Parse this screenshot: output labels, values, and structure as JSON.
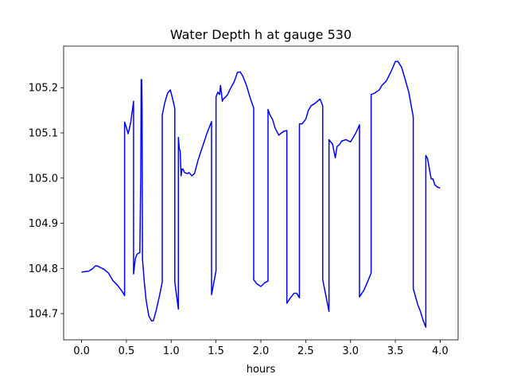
{
  "chart_data": {
    "type": "line",
    "title": "Water Depth h at gauge 530",
    "xlabel": "hours",
    "ylabel": "",
    "xlim": [
      -0.2,
      4.2
    ],
    "ylim": [
      104.642,
      105.292
    ],
    "xticks": [
      0.0,
      0.5,
      1.0,
      1.5,
      2.0,
      2.5,
      3.0,
      3.5,
      4.0
    ],
    "xtick_labels": [
      "0.0",
      "0.5",
      "1.0",
      "1.5",
      "2.0",
      "2.5",
      "3.0",
      "3.5",
      "4.0"
    ],
    "yticks": [
      104.7,
      104.8,
      104.9,
      105.0,
      105.1,
      105.2
    ],
    "ytick_labels": [
      "104.7",
      "104.8",
      "104.9",
      "105.0",
      "105.1",
      "105.2"
    ],
    "grid": false,
    "series": [
      {
        "color": "#0000ff",
        "x": [
          0.0,
          0.08,
          0.12,
          0.15,
          0.17,
          0.2,
          0.25,
          0.3,
          0.35,
          0.4,
          0.45,
          0.48,
          0.48,
          0.5,
          0.52,
          0.55,
          0.58,
          0.58,
          0.6,
          0.62,
          0.65,
          0.66,
          0.665,
          0.67,
          0.675,
          0.68,
          0.7,
          0.72,
          0.75,
          0.78,
          0.8,
          0.83,
          0.87,
          0.9,
          0.9,
          0.93,
          0.96,
          0.99,
          1.01,
          1.04,
          1.04,
          1.08,
          1.08,
          1.09,
          1.1,
          1.11,
          1.12,
          1.13,
          1.15,
          1.18,
          1.2,
          1.23,
          1.26,
          1.3,
          1.35,
          1.4,
          1.45,
          1.45,
          1.5,
          1.5,
          1.52,
          1.54,
          1.55,
          1.56,
          1.57,
          1.58,
          1.6,
          1.63,
          1.66,
          1.7,
          1.74,
          1.77,
          1.8,
          1.84,
          1.88,
          1.92,
          1.92,
          1.96,
          2.0,
          2.04,
          2.08,
          2.08,
          2.1,
          2.13,
          2.16,
          2.2,
          2.23,
          2.26,
          2.29,
          2.29,
          2.33,
          2.37,
          2.4,
          2.43,
          2.43,
          2.46,
          2.5,
          2.53,
          2.56,
          2.6,
          2.63,
          2.66,
          2.69,
          2.69,
          2.72,
          2.76,
          2.76,
          2.78,
          2.8,
          2.83,
          2.85,
          2.88,
          2.9,
          2.95,
          3.0,
          3.06,
          3.1,
          3.1,
          3.15,
          3.2,
          3.23,
          3.23,
          3.27,
          3.32,
          3.35,
          3.4,
          3.45,
          3.5,
          3.53,
          3.57,
          3.6,
          3.65,
          3.7,
          3.7,
          3.75,
          3.78,
          3.81,
          3.84,
          3.84,
          3.86,
          3.88,
          3.9,
          3.92,
          3.94,
          3.97,
          4.0
        ],
        "y": [
          104.792,
          104.794,
          104.799,
          104.805,
          104.806,
          104.803,
          104.798,
          104.79,
          104.773,
          104.763,
          104.75,
          104.74,
          105.124,
          105.112,
          105.098,
          105.125,
          105.17,
          104.788,
          104.822,
          104.832,
          104.835,
          105.0,
          105.218,
          105.218,
          105.15,
          104.82,
          104.77,
          104.73,
          104.695,
          104.684,
          104.684,
          104.705,
          104.74,
          104.77,
          105.14,
          105.168,
          105.188,
          105.195,
          105.18,
          105.155,
          104.77,
          104.71,
          105.09,
          105.065,
          105.06,
          105.005,
          105.02,
          105.02,
          105.012,
          105.01,
          105.012,
          105.005,
          105.01,
          105.04,
          105.07,
          105.1,
          105.125,
          104.742,
          104.795,
          105.18,
          105.19,
          105.185,
          105.205,
          105.19,
          105.17,
          105.175,
          105.178,
          105.185,
          105.198,
          105.212,
          105.234,
          105.235,
          105.225,
          105.205,
          105.178,
          105.155,
          104.775,
          104.765,
          104.76,
          104.768,
          104.772,
          105.152,
          105.14,
          105.13,
          105.11,
          105.095,
          105.1,
          105.104,
          105.105,
          104.723,
          104.735,
          104.745,
          104.745,
          104.735,
          105.12,
          105.12,
          105.13,
          105.15,
          105.16,
          105.165,
          105.17,
          105.175,
          105.16,
          104.775,
          104.745,
          104.705,
          105.085,
          105.08,
          105.075,
          105.045,
          105.07,
          105.075,
          105.082,
          105.085,
          105.08,
          105.1,
          105.118,
          104.737,
          104.752,
          104.775,
          104.79,
          105.185,
          105.188,
          105.195,
          105.205,
          105.215,
          105.235,
          105.258,
          105.258,
          105.245,
          105.225,
          105.19,
          105.135,
          104.755,
          104.72,
          104.705,
          104.685,
          104.67,
          105.05,
          105.043,
          105.02,
          104.998,
          104.998,
          104.985,
          104.98,
          104.978
        ]
      }
    ]
  }
}
